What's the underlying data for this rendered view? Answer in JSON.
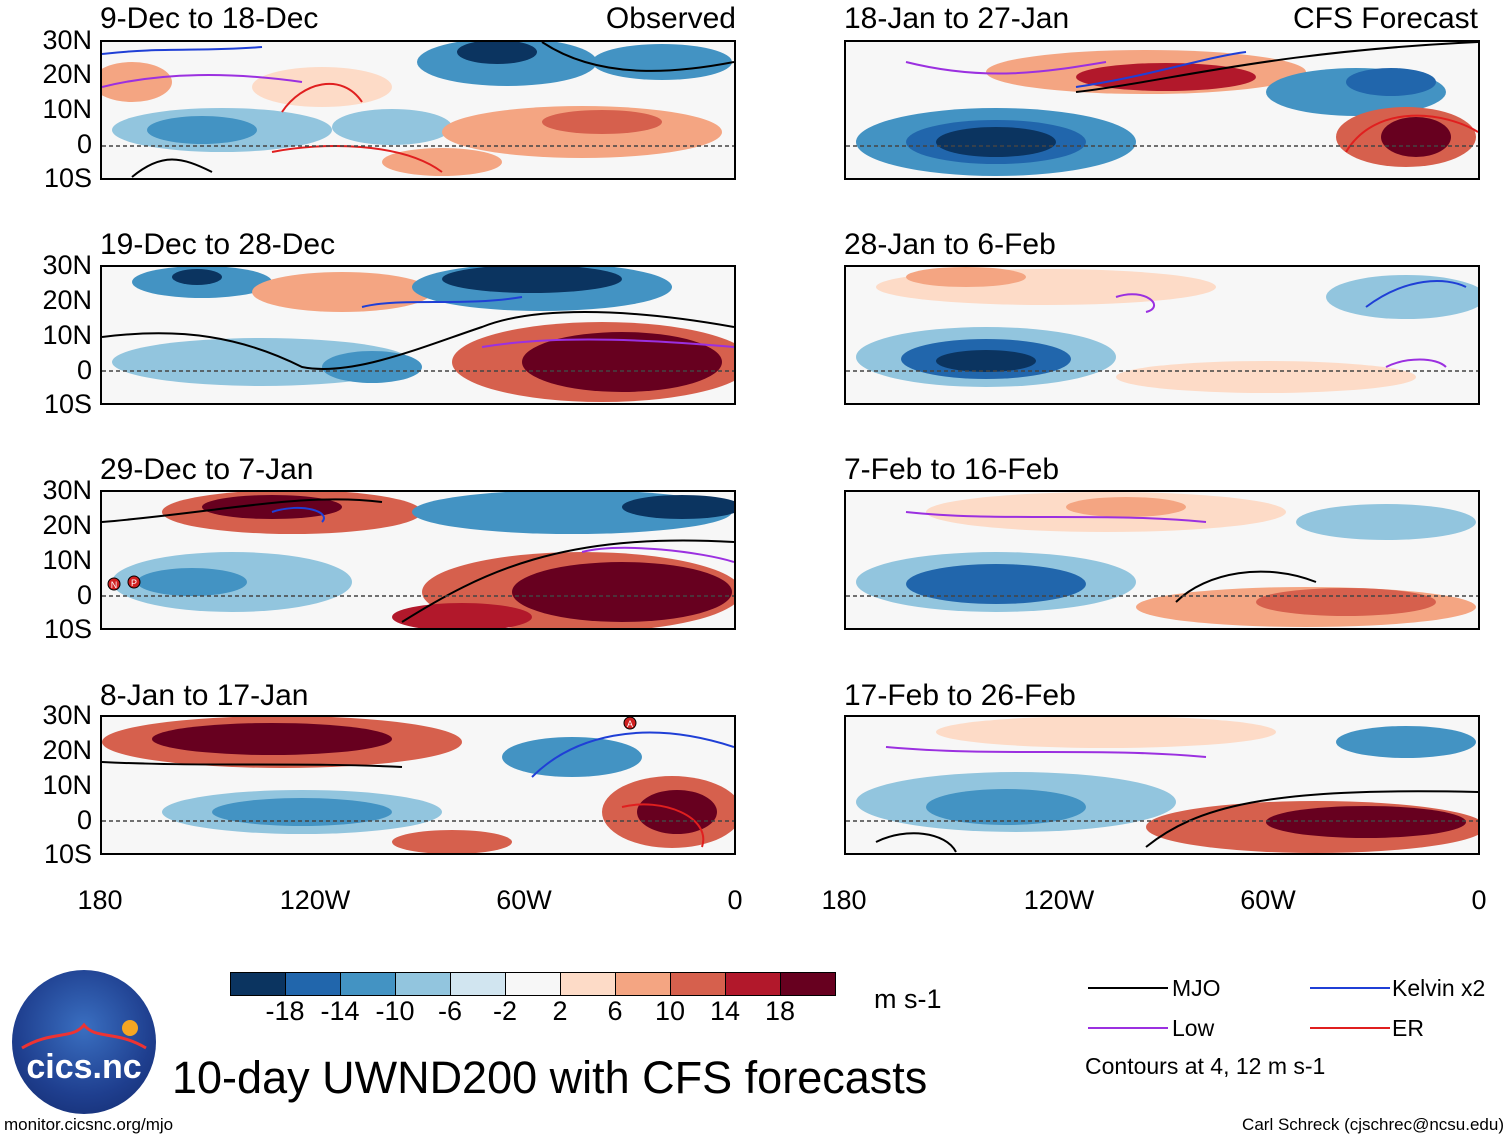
{
  "panels": [
    {
      "title": "9-Dec to 18-Dec",
      "tag": "Observed"
    },
    {
      "title": "18-Jan to 27-Jan",
      "tag": "CFS Forecast"
    },
    {
      "title": "19-Dec to 28-Dec",
      "tag": ""
    },
    {
      "title": "28-Jan to 6-Feb",
      "tag": ""
    },
    {
      "title": "29-Dec to 7-Jan",
      "tag": ""
    },
    {
      "title": "7-Feb to 16-Feb",
      "tag": ""
    },
    {
      "title": "8-Jan to 17-Jan",
      "tag": ""
    },
    {
      "title": "17-Feb to 26-Feb",
      "tag": ""
    }
  ],
  "lat_labels": [
    "30N",
    "20N",
    "10N",
    "0",
    "10S"
  ],
  "lon_labels": [
    "180",
    "120W",
    "60W",
    "0"
  ],
  "colorbar": {
    "colors": [
      "#0b3460",
      "#2166ac",
      "#4393c3",
      "#92c5de",
      "#d1e5f0",
      "#f7f7f7",
      "#fddbc7",
      "#f4a582",
      "#d6604d",
      "#b2182b",
      "#67001f"
    ],
    "ticks": [
      "-18",
      "-14",
      "-10",
      "-6",
      "-2",
      "2",
      "6",
      "10",
      "14",
      "18"
    ],
    "units": "m s-1"
  },
  "legend": {
    "items": [
      {
        "label": "MJO",
        "color": "#000000"
      },
      {
        "label": "Kelvin x2",
        "color": "#1f3fd6"
      },
      {
        "label": "Low",
        "color": "#9b30e0"
      },
      {
        "label": "ER",
        "color": "#e01f1f"
      }
    ],
    "note": "Contours at 4, 12 m s-1"
  },
  "title": "10-day UWND200 with CFS forecasts",
  "logo_text": "cics.nc",
  "footer_left": "monitor.cicsnc.org/mjo",
  "footer_right": "Carl Schreck (cjschrec@ncsu.edu)",
  "storm_markers": [
    "N",
    "P",
    "A"
  ]
}
